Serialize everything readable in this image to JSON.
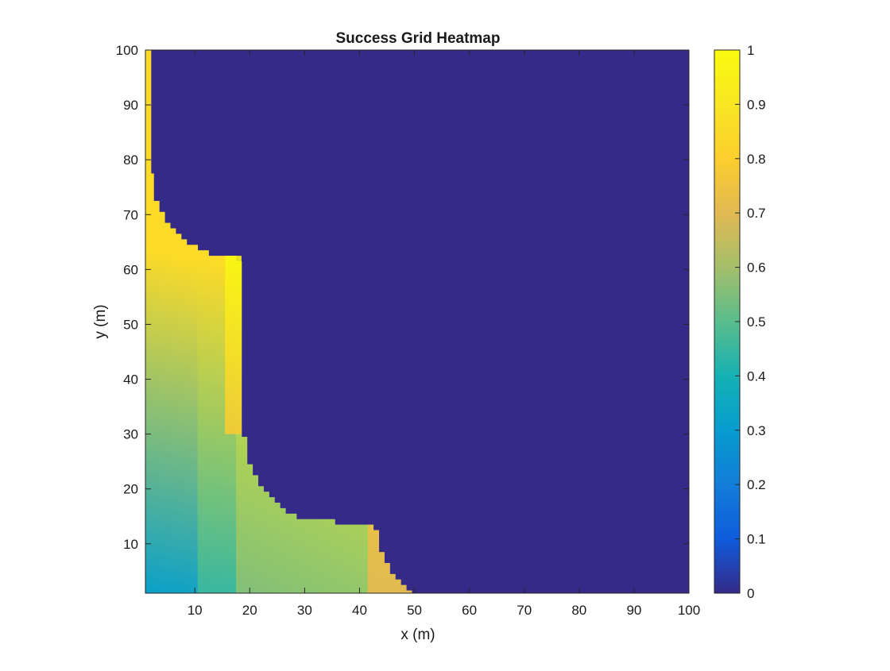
{
  "chart_data": {
    "type": "heatmap",
    "title": "Success Grid Heatmap",
    "xlabel": "x (m)",
    "ylabel": "y (m)",
    "xlim": [
      1,
      100
    ],
    "ylim": [
      1,
      100
    ],
    "xticks": [
      10,
      20,
      30,
      40,
      50,
      60,
      70,
      80,
      90,
      100
    ],
    "yticks": [
      10,
      20,
      30,
      40,
      50,
      60,
      70,
      80,
      90,
      100
    ],
    "colorbar": {
      "min": 0,
      "max": 1,
      "ticks": [
        0,
        0.1,
        0.2,
        0.3,
        0.4,
        0.5,
        0.6,
        0.7,
        0.8,
        0.9,
        1
      ],
      "tick_labels": [
        "0",
        "0.1",
        "0.2",
        "0.3",
        "0.4",
        "0.5",
        "0.6",
        "0.7",
        "0.8",
        "0.9",
        "1"
      ],
      "colormap": "parula"
    },
    "background_value": 0,
    "boundary": [
      {
        "x_from": 1,
        "x_to": 2,
        "y_max": 100
      },
      {
        "x_from": 2,
        "x_to": 2.5,
        "y_max": 77.5
      },
      {
        "x_from": 2.5,
        "x_to": 3.5,
        "y_max": 72.5
      },
      {
        "x_from": 3.5,
        "x_to": 4.5,
        "y_max": 70.5
      },
      {
        "x_from": 4.5,
        "x_to": 5.5,
        "y_max": 68.5
      },
      {
        "x_from": 5.5,
        "x_to": 6.5,
        "y_max": 67.5
      },
      {
        "x_from": 6.5,
        "x_to": 7.5,
        "y_max": 66.5
      },
      {
        "x_from": 7.5,
        "x_to": 8.5,
        "y_max": 65.5
      },
      {
        "x_from": 8.5,
        "x_to": 10.5,
        "y_max": 64.5
      },
      {
        "x_from": 10.5,
        "x_to": 12.5,
        "y_max": 63.5
      },
      {
        "x_from": 12.5,
        "x_to": 17.5,
        "y_max": 62.5
      },
      {
        "x_from": 17.5,
        "x_to": 18.5,
        "y_max": 61.5
      },
      {
        "x_from": 18.5,
        "x_to": 19.5,
        "y_max": 29.5
      },
      {
        "x_from": 19.5,
        "x_to": 20.5,
        "y_max": 24.5
      },
      {
        "x_from": 20.5,
        "x_to": 21.5,
        "y_max": 22.5
      },
      {
        "x_from": 21.5,
        "x_to": 22.5,
        "y_max": 20.5
      },
      {
        "x_from": 22.5,
        "x_to": 23.5,
        "y_max": 19.5
      },
      {
        "x_from": 23.5,
        "x_to": 24.5,
        "y_max": 18.5
      },
      {
        "x_from": 24.5,
        "x_to": 25.5,
        "y_max": 17.5
      },
      {
        "x_from": 25.5,
        "x_to": 26.5,
        "y_max": 16.5
      },
      {
        "x_from": 26.5,
        "x_to": 28.5,
        "y_max": 15.5
      },
      {
        "x_from": 28.5,
        "x_to": 30.5,
        "y_max": 14.5
      },
      {
        "x_from": 30.5,
        "x_to": 35.5,
        "y_max": 14.5
      },
      {
        "x_from": 35.5,
        "x_to": 41.5,
        "y_max": 13.5
      },
      {
        "x_from": 41.5,
        "x_to": 42.5,
        "y_max": 13.5
      },
      {
        "x_from": 42.5,
        "x_to": 43.5,
        "y_max": 12.5
      },
      {
        "x_from": 43.5,
        "x_to": 44.5,
        "y_max": 8.5
      },
      {
        "x_from": 44.5,
        "x_to": 45.5,
        "y_max": 6.5
      },
      {
        "x_from": 45.5,
        "x_to": 46.5,
        "y_max": 4.5
      },
      {
        "x_from": 46.5,
        "x_to": 47.5,
        "y_max": 3.5
      },
      {
        "x_from": 47.5,
        "x_to": 48.5,
        "y_max": 2.5
      },
      {
        "x_from": 48.5,
        "x_to": 49.5,
        "y_max": 1.5
      }
    ],
    "regions": [
      {
        "x_from": 1,
        "x_to": 10.5,
        "value_at_bottom_left": 0.32,
        "value_at_top_right": 0.85
      },
      {
        "x_from": 10.5,
        "x_to": 15.5,
        "value_at_bottom_left": 0.45,
        "value_at_top_right": 0.85
      },
      {
        "x_from": 15.5,
        "x_to": 40.5,
        "value_at_bottom_left": 0.55,
        "value_at_top_right": 0.95
      },
      {
        "x_from": 40.5,
        "x_to": 49.5,
        "value_at_bottom_left": 0.7,
        "value_at_top_right": 0.88
      }
    ]
  }
}
